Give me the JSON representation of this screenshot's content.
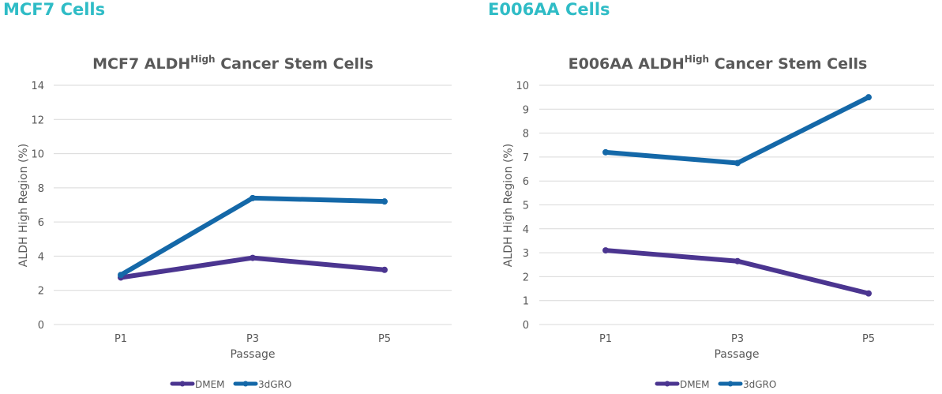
{
  "headers": [
    "MCF7 Cells",
    "E006AA Cells"
  ],
  "colors": {
    "DMEM": "#4b3590",
    "3dGRO": "#1468a8",
    "header": "#2fbcc6"
  },
  "chart_data": [
    {
      "type": "line",
      "title": "MCF7 ALDH",
      "title_sup": "High",
      "title_suffix": " Cancer Stem Cells",
      "xlabel": "Passage",
      "ylabel": "ALDH High Region (%)",
      "categories": [
        "P1",
        "P3",
        "P5"
      ],
      "ylim": [
        0,
        14
      ],
      "yticks": [
        0,
        2,
        4,
        6,
        8,
        10,
        12,
        14
      ],
      "grid": true,
      "legend": "bottom",
      "series": [
        {
          "name": "DMEM",
          "values": [
            2.75,
            3.9,
            3.2
          ]
        },
        {
          "name": "3dGRO",
          "values": [
            2.9,
            7.4,
            7.2
          ]
        }
      ]
    },
    {
      "type": "line",
      "title": "E006AA ALDH",
      "title_sup": "High",
      "title_suffix": " Cancer Stem Cells",
      "xlabel": "Passage",
      "ylabel": "ALDH High Region (%)",
      "categories": [
        "P1",
        "P3",
        "P5"
      ],
      "ylim": [
        0,
        10
      ],
      "yticks": [
        0,
        1,
        2,
        3,
        4,
        5,
        6,
        7,
        8,
        9,
        10
      ],
      "grid": true,
      "legend": "bottom",
      "series": [
        {
          "name": "DMEM",
          "values": [
            3.1,
            2.65,
            1.3
          ]
        },
        {
          "name": "3dGRO",
          "values": [
            7.2,
            6.75,
            9.5
          ]
        }
      ]
    }
  ]
}
